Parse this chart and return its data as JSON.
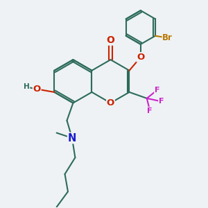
{
  "bg_color": "#eef2f4",
  "bond_color": "#2d6b5a",
  "bond_width": 1.5,
  "colors": {
    "O": "#cc2200",
    "N": "#1a1acc",
    "F": "#cc22cc",
    "Br": "#b87800",
    "H": "#2d6b5a",
    "C": "#2d6b5a"
  },
  "font_size": 8.5
}
